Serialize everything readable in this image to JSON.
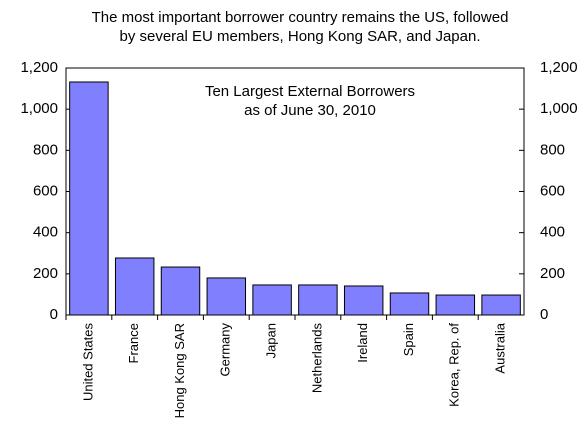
{
  "chart_data": {
    "type": "bar",
    "title": [
      "The most important borrower country remains the US, followed",
      "by several EU members, Hong Kong SAR, and Japan."
    ],
    "annotation": [
      "Ten Largest External Borrowers",
      "as of June 30, 2010"
    ],
    "categories": [
      "United States",
      "France",
      "Hong Kong SAR",
      "Germany",
      "Japan",
      "Netherlands",
      "Ireland",
      "Spain",
      "Korea, Rep. of",
      "Australia"
    ],
    "values": [
      1132,
      277,
      233,
      180,
      146,
      146,
      141,
      107,
      97,
      97
    ],
    "color": "#8080ff",
    "ylim": [
      0,
      1200
    ],
    "yticks": [
      0,
      200,
      400,
      600,
      800,
      {
        "value": 1000,
        "label": "1,000"
      },
      {
        "value": 1200,
        "label": "1,200"
      }
    ],
    "y2lim": [
      0,
      1200
    ],
    "y2ticks": [
      0,
      200,
      400,
      600,
      800,
      {
        "value": 1000,
        "label": "1,000"
      },
      {
        "value": 1200,
        "label": "1,200"
      }
    ],
    "grid": false
  }
}
